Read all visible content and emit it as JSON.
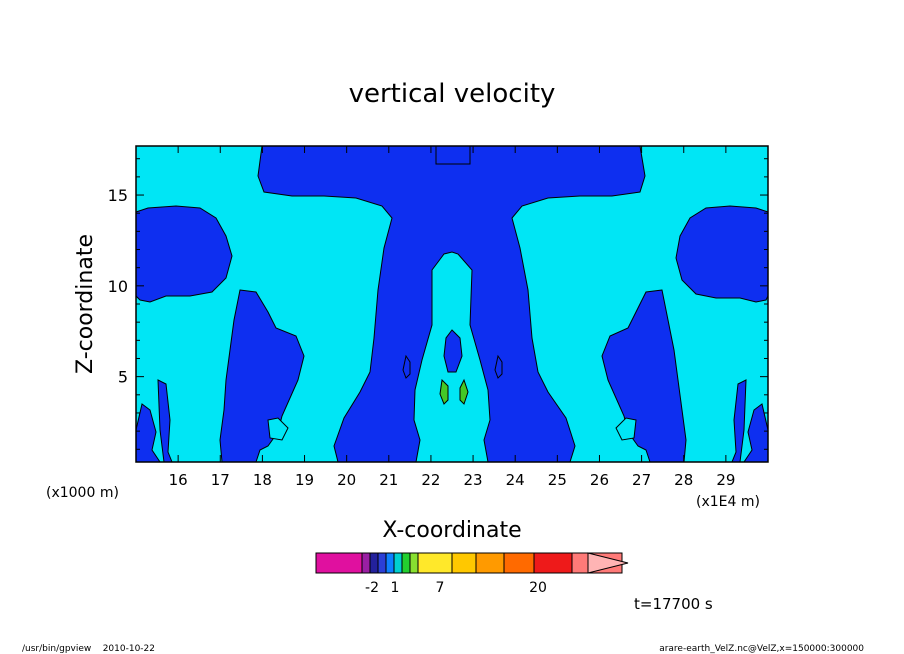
{
  "chart_data": {
    "type": "heatmap",
    "title": "vertical velocity",
    "xlabel": "X-coordinate",
    "ylabel": "Z-coordinate",
    "x_unit_left": "(x1000 m)",
    "x_unit_right": "(x1E4 m)",
    "xlim": [
      15,
      30
    ],
    "ylim": [
      0.3,
      17.7
    ],
    "x_ticks": [
      16,
      17,
      18,
      19,
      20,
      21,
      22,
      23,
      24,
      25,
      26,
      27,
      28,
      29
    ],
    "y_ticks": [
      5,
      10,
      15
    ],
    "time_label": "t=17700 s",
    "colorbar": {
      "tick_labels": [
        "-2",
        "1",
        "7",
        "20"
      ],
      "colors": [
        "#e0109f",
        "#9a1fa3",
        "#23219c",
        "#2b3fd6",
        "#0d80ff",
        "#00d0d0",
        "#23d030",
        "#88e030",
        "#ffe82a",
        "#ffc800",
        "#ff9a00",
        "#ff6a00",
        "#ee1a1a",
        "#ff7a78"
      ],
      "extend_color": "#ffb4b4"
    },
    "colors": {
      "low_band": "#0e2ff0",
      "background_band": "#00e6f5",
      "peak_band": "#44c826",
      "contour": "#000000"
    }
  },
  "footer": {
    "left": "/usr/bin/gpview    2010-10-22",
    "right": "arare-earth_VelZ.nc@VelZ,x=150000:300000"
  }
}
